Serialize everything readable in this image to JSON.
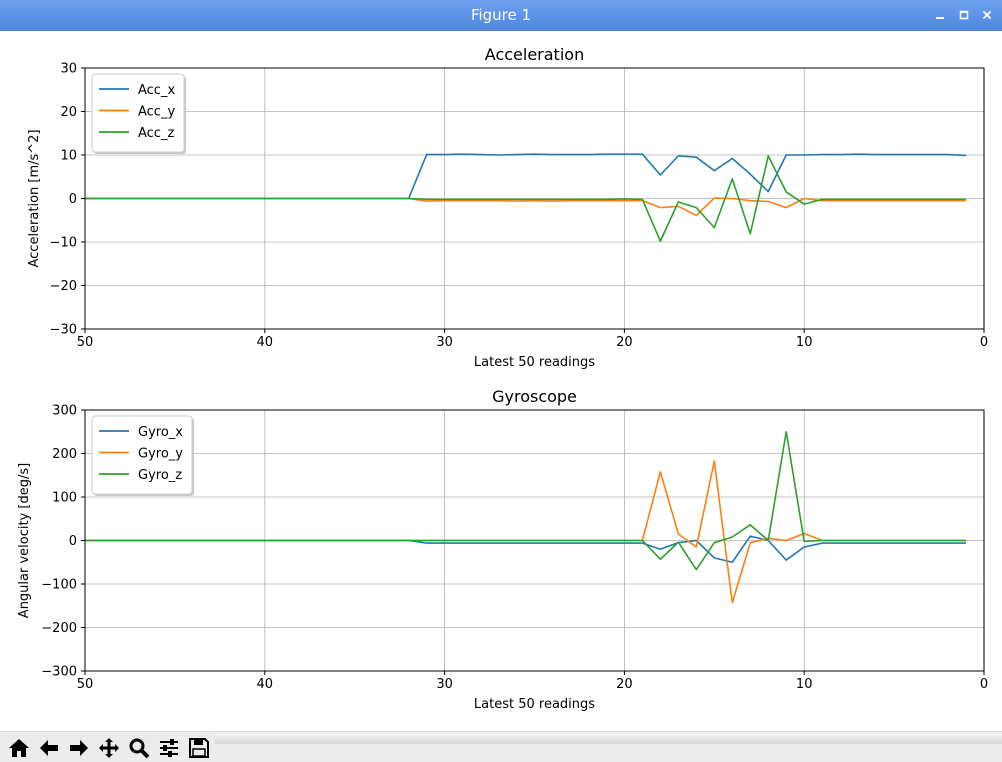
{
  "window": {
    "title": "Figure 1"
  },
  "toolbar": {
    "buttons": [
      {
        "name": "home-icon"
      },
      {
        "name": "back-arrow-icon"
      },
      {
        "name": "forward-arrow-icon"
      },
      {
        "name": "pan-icon"
      },
      {
        "name": "zoom-icon"
      },
      {
        "name": "configure-subplots-icon"
      },
      {
        "name": "save-icon"
      }
    ]
  },
  "colors": {
    "series1": "#1f77b4",
    "series2": "#ff7f0e",
    "series3": "#2ca02c",
    "titlebar": "#5a8fe6"
  },
  "chart_data": [
    {
      "type": "line",
      "title": "Acceleration",
      "xlabel": "Latest 50 readings",
      "ylabel": "Acceleration [m/s^2]",
      "xlim": [
        50,
        0
      ],
      "ylim": [
        -30,
        30
      ],
      "xticks": [
        50,
        40,
        30,
        20,
        10,
        0
      ],
      "xtick_labels": [
        "50",
        "40",
        "30",
        "20",
        "10",
        "0"
      ],
      "yticks": [
        -30,
        -20,
        -10,
        0,
        10,
        20,
        30
      ],
      "ytick_labels": [
        "−30",
        "−20",
        "−10",
        "0",
        "10",
        "20",
        "30"
      ],
      "grid": true,
      "legend": "top-left",
      "x": [
        50,
        49,
        48,
        47,
        46,
        45,
        44,
        43,
        42,
        41,
        40,
        39,
        38,
        37,
        36,
        35,
        34,
        33,
        32,
        31,
        30,
        29,
        28,
        27,
        26,
        25,
        24,
        23,
        22,
        21,
        20,
        19,
        18,
        17,
        16,
        15,
        14,
        13,
        12,
        11,
        10,
        9,
        8,
        7,
        6,
        5,
        4,
        3,
        2,
        1
      ],
      "series": [
        {
          "name": "Acc_x",
          "values": [
            0,
            0,
            0,
            0,
            0,
            0,
            0,
            0,
            0,
            0,
            0,
            0,
            0,
            0,
            0,
            0,
            0,
            0,
            0,
            10.1,
            10.1,
            10.2,
            10.1,
            10,
            10.1,
            10.2,
            10.1,
            10.1,
            10.1,
            10.2,
            10.2,
            10.2,
            5.4,
            9.8,
            9.5,
            6.4,
            9.2,
            5.6,
            1.6,
            10,
            10,
            10.1,
            10.1,
            10.2,
            10.1,
            10.1,
            10.1,
            10.1,
            10.1,
            9.9
          ]
        },
        {
          "name": "Acc_y",
          "values": [
            0,
            0,
            0,
            0,
            0,
            0,
            0,
            0,
            0,
            0,
            0,
            0,
            0,
            0,
            0,
            0,
            0,
            0,
            0,
            -0.6,
            -0.5,
            -0.5,
            -0.5,
            -0.5,
            -0.6,
            -0.5,
            -0.6,
            -0.5,
            -0.5,
            -0.5,
            -0.5,
            -0.5,
            -2.1,
            -1.8,
            -3.9,
            0.1,
            0,
            -0.5,
            -0.7,
            -2.1,
            0,
            -0.5,
            -0.5,
            -0.5,
            -0.5,
            -0.5,
            -0.5,
            -0.5,
            -0.5,
            -0.5
          ]
        },
        {
          "name": "Acc_z",
          "values": [
            0,
            0,
            0,
            0,
            0,
            0,
            0,
            0,
            0,
            0,
            0,
            0,
            0,
            0,
            0,
            0,
            0,
            0,
            0,
            -0.2,
            -0.2,
            -0.2,
            -0.2,
            -0.2,
            -0.2,
            -0.2,
            -0.2,
            -0.2,
            -0.2,
            -0.2,
            -0.1,
            -0.2,
            -9.8,
            -0.8,
            -2.1,
            -6.7,
            4.5,
            -8.1,
            9.8,
            1.5,
            -1.3,
            -0.2,
            -0.2,
            -0.2,
            -0.2,
            -0.2,
            -0.2,
            -0.2,
            -0.2,
            -0.2
          ]
        }
      ]
    },
    {
      "type": "line",
      "title": "Gyroscope",
      "xlabel": "Latest 50 readings",
      "ylabel": "Angular velocity [deg/s]",
      "xlim": [
        50,
        0
      ],
      "ylim": [
        -300,
        300
      ],
      "xticks": [
        50,
        40,
        30,
        20,
        10,
        0
      ],
      "xtick_labels": [
        "50",
        "40",
        "30",
        "20",
        "10",
        "0"
      ],
      "yticks": [
        -300,
        -200,
        -100,
        0,
        100,
        200,
        300
      ],
      "ytick_labels": [
        "−300",
        "−200",
        "−100",
        "0",
        "100",
        "200",
        "300"
      ],
      "grid": true,
      "legend": "top-left",
      "x": [
        50,
        49,
        48,
        47,
        46,
        45,
        44,
        43,
        42,
        41,
        40,
        39,
        38,
        37,
        36,
        35,
        34,
        33,
        32,
        31,
        30,
        29,
        28,
        27,
        26,
        25,
        24,
        23,
        22,
        21,
        20,
        19,
        18,
        17,
        16,
        15,
        14,
        13,
        12,
        11,
        10,
        9,
        8,
        7,
        6,
        5,
        4,
        3,
        2,
        1
      ],
      "series": [
        {
          "name": "Gyro_x",
          "values": [
            0,
            0,
            0,
            0,
            0,
            0,
            0,
            0,
            0,
            0,
            0,
            0,
            0,
            0,
            0,
            0,
            0,
            0,
            0,
            -6,
            -6,
            -6,
            -6,
            -6,
            -6,
            -6,
            -6,
            -6,
            -6,
            -6,
            -6,
            -6,
            -20,
            -5,
            0,
            -40,
            -50,
            10,
            0,
            -45,
            -15,
            -6,
            -6,
            -6,
            -6,
            -6,
            -6,
            -6,
            -6,
            -6
          ]
        },
        {
          "name": "Gyro_y",
          "values": [
            0,
            0,
            0,
            0,
            0,
            0,
            0,
            0,
            0,
            0,
            0,
            0,
            0,
            0,
            0,
            0,
            0,
            0,
            0,
            0,
            0,
            0,
            0,
            0,
            0,
            0,
            0,
            0,
            0,
            0,
            0,
            0,
            158,
            15,
            -15,
            183,
            -143,
            -5,
            5,
            0,
            16,
            0,
            0,
            0,
            0,
            0,
            0,
            0,
            0,
            0
          ]
        },
        {
          "name": "Gyro_z",
          "values": [
            0,
            0,
            0,
            0,
            0,
            0,
            0,
            0,
            0,
            0,
            0,
            0,
            0,
            0,
            0,
            0,
            0,
            0,
            0,
            0,
            0,
            0,
            0,
            0,
            0,
            0,
            0,
            0,
            0,
            0,
            0,
            0,
            -43,
            -4,
            -67,
            -5,
            8,
            36,
            0,
            250,
            -2,
            0,
            0,
            0,
            0,
            0,
            0,
            0,
            0,
            0
          ]
        }
      ]
    }
  ]
}
